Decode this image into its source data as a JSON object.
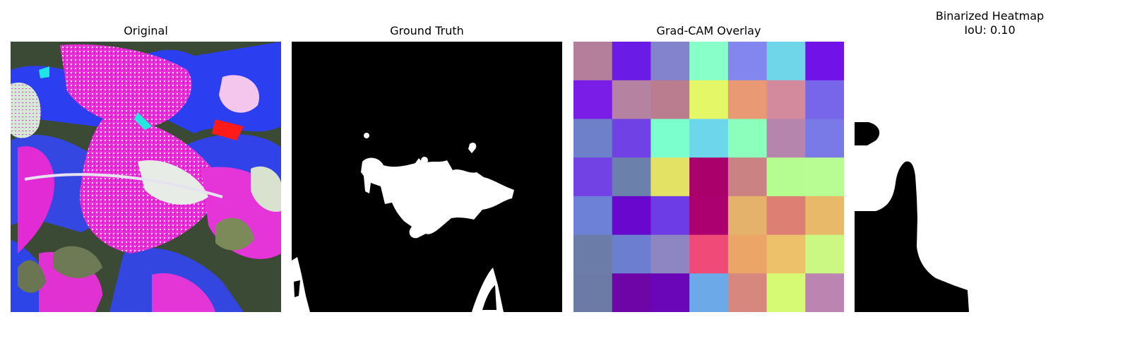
{
  "panels": {
    "original": {
      "title": "Original"
    },
    "ground_truth": {
      "title": "Ground Truth"
    },
    "gradcam": {
      "title": "Grad-CAM Overlay",
      "grid_colors": [
        [
          "#b47f9b",
          "#6a1ce6",
          "#8382cd",
          "#88ffc8",
          "#8386ee",
          "#6ed6e8",
          "#7113e8"
        ],
        [
          "#7a1ee7",
          "#b583a1",
          "#b97d8f",
          "#e3f767",
          "#e99a74",
          "#d38a9c",
          "#7765ea"
        ],
        [
          "#6e80c9",
          "#7042e6",
          "#7affcd",
          "#6dd6ea",
          "#8bffbb",
          "#b685ad",
          "#797ae7"
        ],
        [
          "#7242e5",
          "#6b80ab",
          "#e3e265",
          "#aa006b",
          "#cb8282",
          "#b5fd91",
          "#b8fd93"
        ],
        [
          "#6d81d6",
          "#6a07cf",
          "#6e3ce6",
          "#ad0070",
          "#e5b26c",
          "#dd8073",
          "#e9b96a"
        ],
        [
          "#6b7ca8",
          "#6c7ed0",
          "#8e86c2",
          "#f04a79",
          "#eba566",
          "#ecc169",
          "#cbf783"
        ],
        [
          "#6c7ba6",
          "#6d05a7",
          "#6b05b8",
          "#6ba9e8",
          "#d8877e",
          "#d6fa73",
          "#bc84b0"
        ]
      ]
    },
    "binarized": {
      "title": "Binarized Heatmap\nIoU: 0.10"
    }
  }
}
